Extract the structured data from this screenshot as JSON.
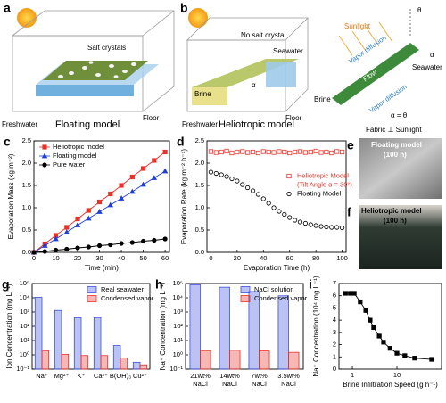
{
  "diagrams": {
    "a": {
      "label": "a",
      "salt": "Salt crystals",
      "freshwater": "Freshwater",
      "floor": "Floor",
      "caption": "Floating model"
    },
    "b": {
      "label": "b",
      "salt": "No salt crystal",
      "seawater": "Seawater",
      "brine": "Brine",
      "alpha": "α",
      "freshwater": "Freshwater",
      "floor": "Floor",
      "caption": "Heliotropic model"
    },
    "scheme": {
      "sunlight": "Sunlight",
      "theta": "θ",
      "vapor_top": "Vapor diffusion",
      "vapor_bottom": "Vapor diffusion",
      "seawater": "Seawater",
      "brine": "Brine",
      "flow": "Flow",
      "alpha": "α",
      "equation": "α = θ",
      "caption": "Fabric ⊥ Sunlight"
    }
  },
  "photos": {
    "e": {
      "label": "e",
      "title": "Floating model",
      "time": "(100 h)"
    },
    "f": {
      "label": "f",
      "title": "Heliotropic model",
      "time": "(100 h)"
    }
  },
  "chart_data": [
    {
      "type": "line",
      "label": "c",
      "xlabel": "Time (min)",
      "ylabel": "Evaporation Mass (kg m⁻²)",
      "x": [
        0,
        5,
        10,
        15,
        20,
        25,
        30,
        35,
        40,
        45,
        50,
        55,
        60
      ],
      "xlim": [
        0,
        62
      ],
      "xticks": [
        0,
        10,
        20,
        30,
        40,
        50,
        60
      ],
      "ylim": [
        0,
        2.5
      ],
      "yticks": [
        {
          "value": 0,
          "label": "0.0"
        },
        0.5,
        {
          "value": 1,
          "label": "1.0"
        },
        1.5,
        {
          "value": 2,
          "label": "2.0"
        },
        2.5
      ],
      "legend": "upper left",
      "series": [
        {
          "name": "Heliotropic model",
          "color": "#e8322a",
          "marker": "square",
          "values": [
            0,
            0.19,
            0.38,
            0.56,
            0.75,
            0.94,
            1.13,
            1.31,
            1.5,
            1.69,
            1.88,
            2.06,
            2.25
          ]
        },
        {
          "name": "Floating model",
          "color": "#1f3fd8",
          "marker": "triangle",
          "values": [
            0,
            0.15,
            0.3,
            0.45,
            0.61,
            0.76,
            0.91,
            1.06,
            1.21,
            1.36,
            1.52,
            1.67,
            1.82
          ]
        },
        {
          "name": "Pure water",
          "color": "#000000",
          "marker": "circle",
          "values": [
            0,
            0.02,
            0.05,
            0.07,
            0.1,
            0.12,
            0.15,
            0.17,
            0.2,
            0.22,
            0.25,
            0.27,
            0.3
          ]
        }
      ]
    },
    {
      "type": "scatter",
      "label": "d",
      "xlabel": "Evaporation Time (h)",
      "ylabel": "Evaporation Rate (kg m⁻² h⁻¹)",
      "x": [
        0,
        4,
        8,
        12,
        16,
        20,
        24,
        28,
        32,
        36,
        40,
        44,
        48,
        52,
        56,
        60,
        64,
        68,
        72,
        76,
        80,
        84,
        88,
        92,
        96,
        100
      ],
      "xlim": [
        -3,
        103
      ],
      "xticks": [
        0,
        20,
        40,
        60,
        80,
        100
      ],
      "ylim": [
        0,
        2.5
      ],
      "yticks": [
        {
          "value": 0,
          "label": "0.0"
        },
        0.5,
        {
          "value": 1,
          "label": "1.0"
        },
        1.5,
        {
          "value": 2,
          "label": "2.0"
        },
        2.5
      ],
      "legend": "center right",
      "legend_note": "(Tilt Angle α = 30°)",
      "series": [
        {
          "name": "Heliotropic Model",
          "color": "#e8322a",
          "marker": "open-square",
          "values": [
            2.26,
            2.24,
            2.25,
            2.27,
            2.23,
            2.25,
            2.26,
            2.24,
            2.25,
            2.23,
            2.26,
            2.25,
            2.24,
            2.26,
            2.25,
            2.23,
            2.25,
            2.26,
            2.24,
            2.25,
            2.27,
            2.24,
            2.25,
            2.23,
            2.26,
            2.25
          ]
        },
        {
          "name": "Floating Model",
          "color": "#000000",
          "marker": "open-circle",
          "values": [
            1.8,
            1.77,
            1.74,
            1.7,
            1.65,
            1.6,
            1.52,
            1.45,
            1.38,
            1.3,
            1.2,
            1.1,
            1.0,
            0.92,
            0.85,
            0.78,
            0.72,
            0.68,
            0.65,
            0.62,
            0.6,
            0.58,
            0.57,
            0.56,
            0.56,
            0.55
          ]
        }
      ]
    },
    {
      "type": "bar",
      "label": "g",
      "ylabel": "Ion Concentration (mg L⁻¹)",
      "ylog": true,
      "categories": [
        [
          "Na⁺"
        ],
        [
          "Mg²⁺"
        ],
        [
          "K⁺"
        ],
        [
          "Ca²⁺"
        ],
        [
          "B(OH)₃"
        ],
        [
          "Cu²⁺"
        ]
      ],
      "ylim": [
        0.1,
        100000
      ],
      "yticks": [
        {
          "value": 0.1,
          "label": "10⁻¹"
        },
        {
          "value": 1,
          "label": "10⁰"
        },
        {
          "value": 10,
          "label": "10¹"
        },
        {
          "value": 100,
          "label": "10²"
        },
        {
          "value": 1000,
          "label": "10³"
        },
        {
          "value": 10000,
          "label": "10⁴"
        },
        {
          "value": 100000,
          "label": "10⁵"
        }
      ],
      "legend": "upper right",
      "series": [
        {
          "name": "Real seawater",
          "color": "#3b4fe0",
          "values": [
            10770,
            1290,
            400,
            410,
            4.5,
            0.3
          ]
        },
        {
          "name": "Condensed vapor",
          "color": "#e8322a",
          "values": [
            2.0,
            1.1,
            0.9,
            0.9,
            0.6,
            0.2
          ]
        }
      ]
    },
    {
      "type": "bar",
      "label": "h",
      "ylabel": "Na⁺ Concentration (mg L⁻¹)",
      "ylog": true,
      "categories": [
        [
          "21wt%",
          "NaCl"
        ],
        [
          "14wt%",
          "NaCl"
        ],
        [
          "7wt%",
          "NaCl"
        ],
        [
          "3.5wt%",
          "NaCl"
        ]
      ],
      "ylim": [
        0.1,
        100000
      ],
      "yticks": [
        {
          "value": 0.1,
          "label": "10⁻¹"
        },
        {
          "value": 1,
          "label": "10⁰"
        },
        {
          "value": 10,
          "label": "10¹"
        },
        {
          "value": 100,
          "label": "10²"
        },
        {
          "value": 1000,
          "label": "10³"
        },
        {
          "value": 10000,
          "label": "10⁴"
        },
        {
          "value": 100000,
          "label": "10⁵"
        }
      ],
      "legend": "upper right",
      "series": [
        {
          "name": "NaCl solution",
          "color": "#3b4fe0",
          "values": [
            82600,
            55000,
            27500,
            13800
          ]
        },
        {
          "name": "Condensed vapor",
          "color": "#e8322a",
          "values": [
            2.0,
            2.1,
            1.9,
            1.5
          ]
        }
      ]
    },
    {
      "type": "line",
      "label": "i",
      "xlabel": "Brine Infiltration Speed (g h⁻¹)",
      "ylabel": "Na⁺ Concentration (10⁴ mg L⁻¹)",
      "xlog": true,
      "x": [
        0.7,
        0.9,
        1.1,
        1.5,
        2,
        2.5,
        3,
        4,
        5,
        7,
        10,
        15,
        25,
        60
      ],
      "xlim": [
        0.5,
        100
      ],
      "xticks": [
        1,
        10
      ],
      "ylim": [
        0,
        7
      ],
      "yticks": [
        0,
        1,
        2,
        3,
        4,
        5,
        6,
        7
      ],
      "series": [
        {
          "color": "#000000",
          "marker": "square",
          "values": [
            6.2,
            6.2,
            6.2,
            5.5,
            4.8,
            4.0,
            3.4,
            2.7,
            2.2,
            1.7,
            1.3,
            1.1,
            0.9,
            0.8
          ],
          "errors": [
            0.15,
            0.15,
            0.15,
            0.2,
            0.2,
            0.2,
            0.2,
            0.15,
            0.15,
            0.12,
            0.1,
            0.1,
            0.08,
            0.08
          ]
        }
      ]
    }
  ]
}
